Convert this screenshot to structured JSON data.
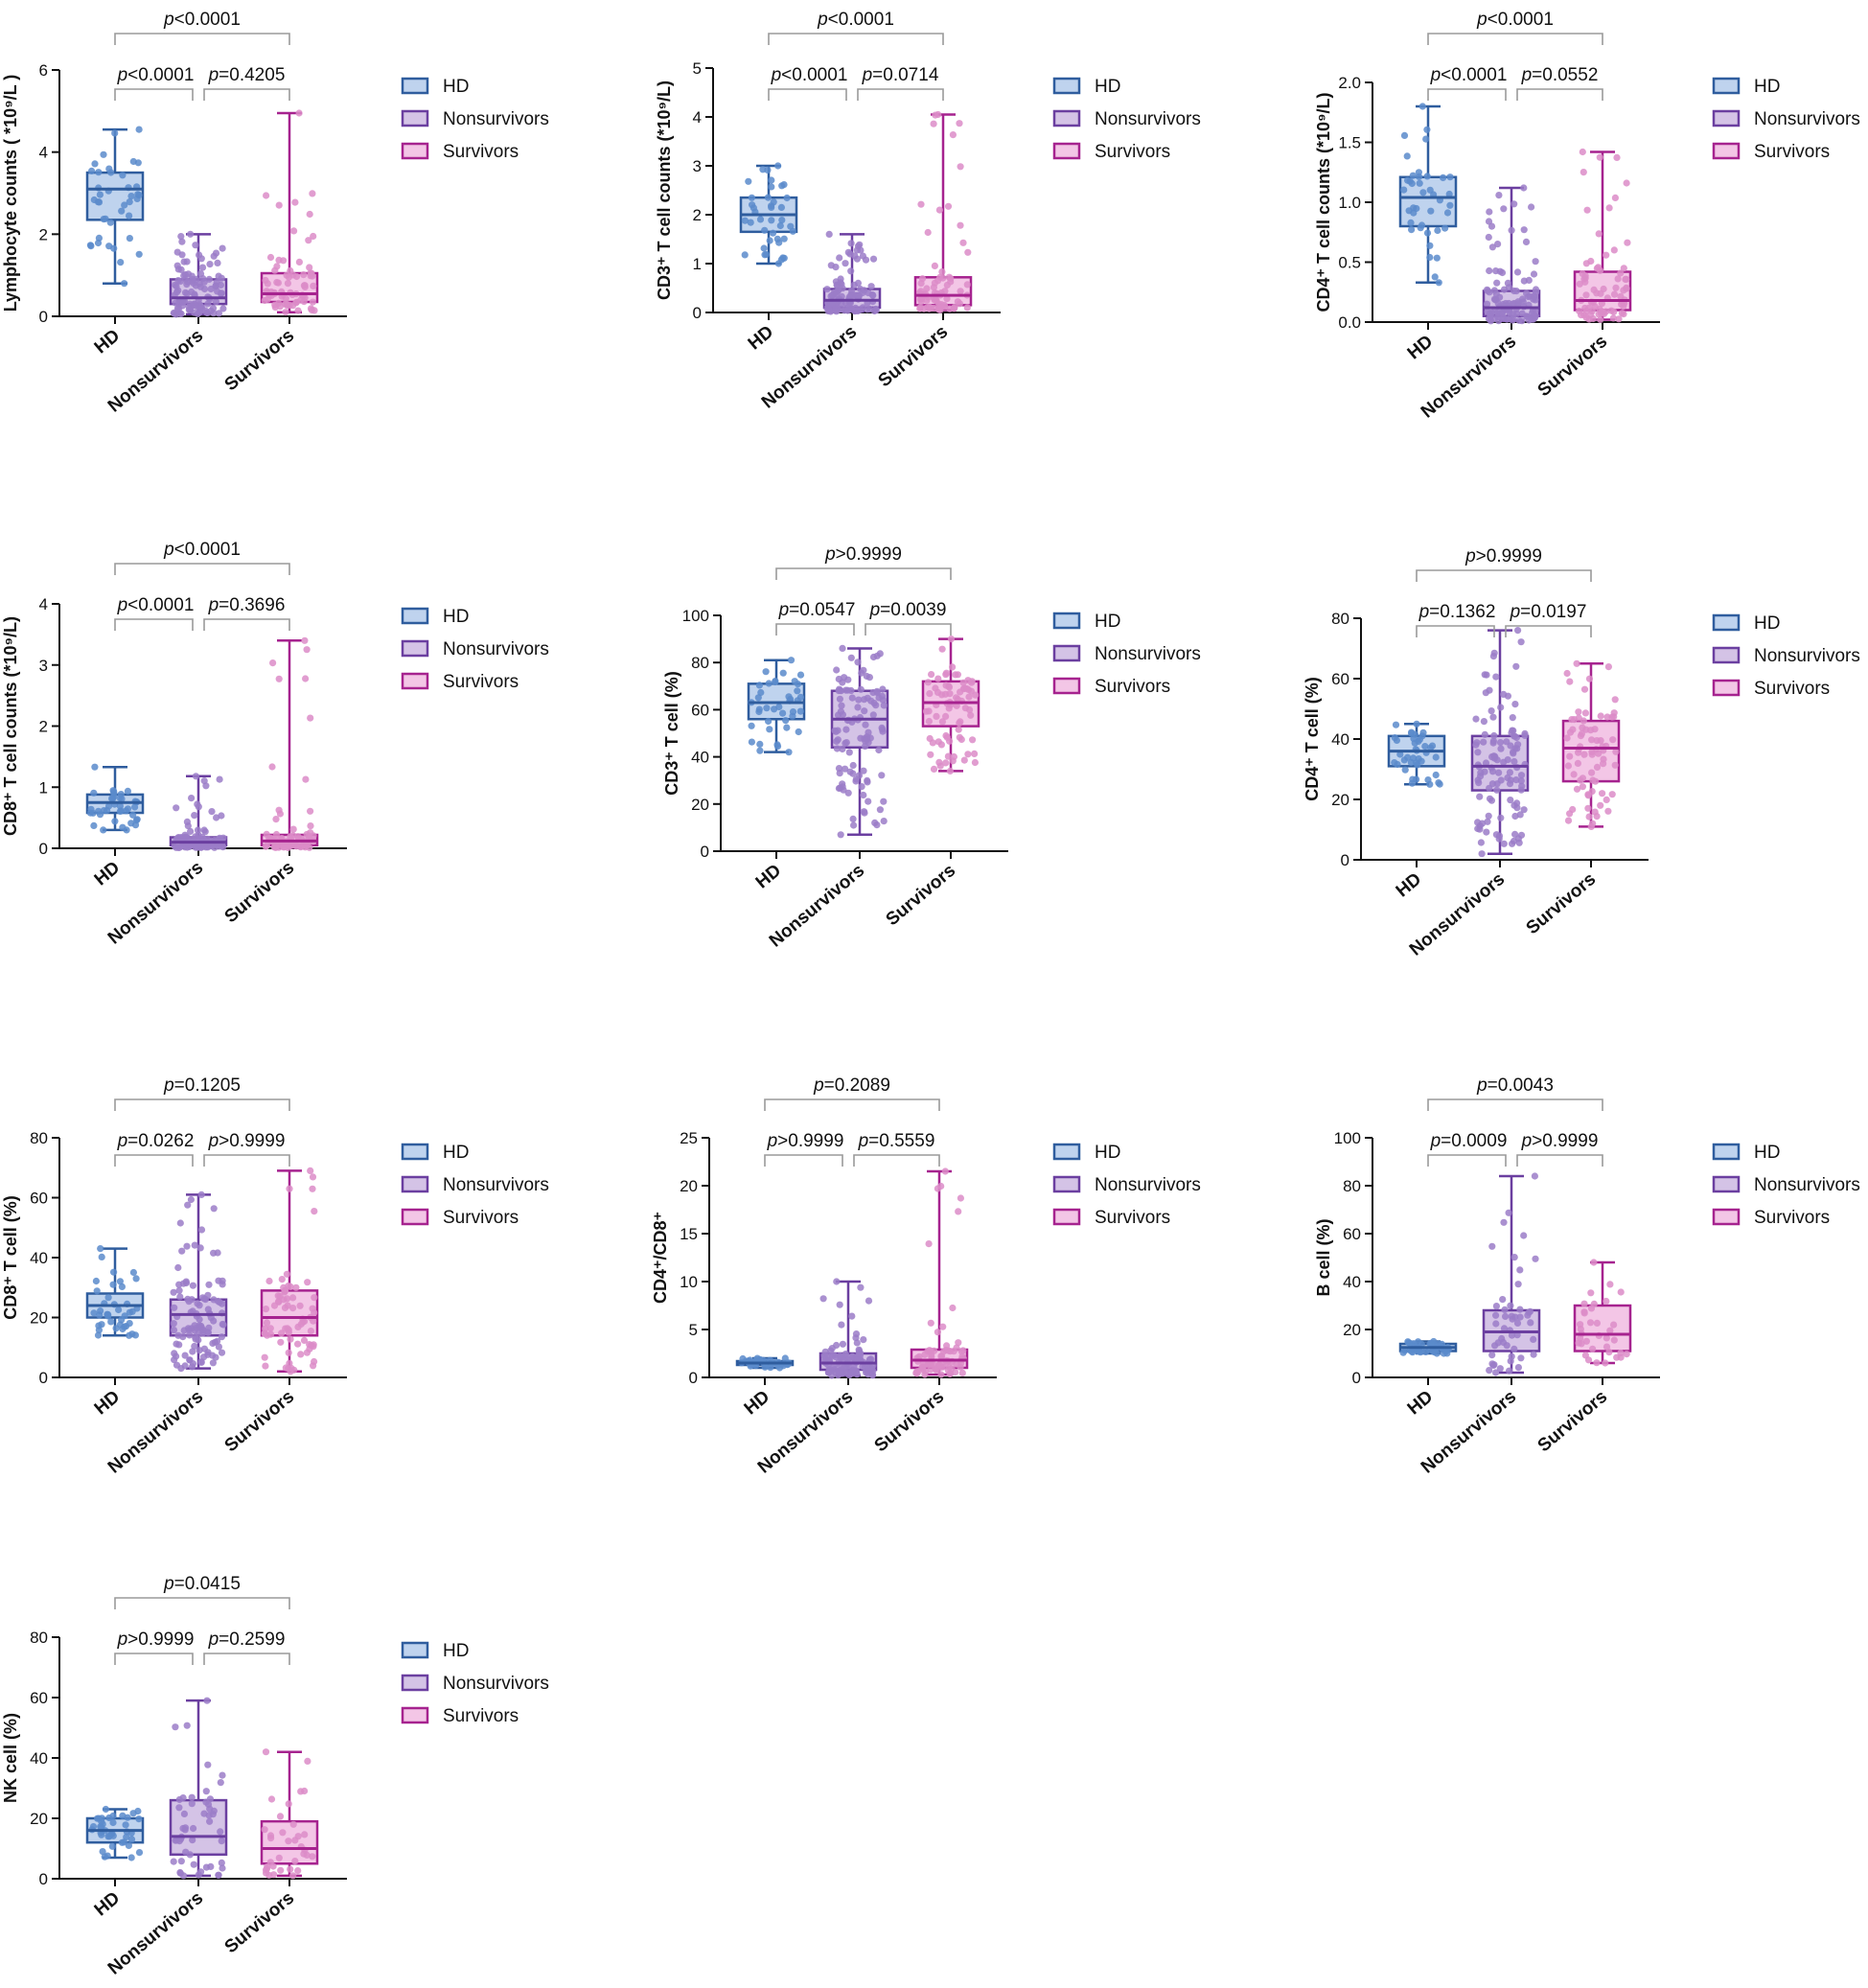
{
  "figure": {
    "legend_labels": [
      "HD",
      "Nonsurvivors",
      "Survivors"
    ],
    "group_colors": {
      "HD": {
        "stroke": "#2F5D9E",
        "fill": "#BFD3EE",
        "dot": "#5B8BCB"
      },
      "Nonsurvivors": {
        "stroke": "#6B3FA0",
        "fill": "#D4C3E6",
        "dot": "#9B7CC8"
      },
      "Survivors": {
        "stroke": "#A6238F",
        "fill": "#F3C6E6",
        "dot": "#DC8CC8"
      }
    }
  },
  "chart_data": [
    {
      "id": "lymphocyte",
      "type": "box",
      "ylabel": "Lymphocyte counts ( *10⁹/L )",
      "ylim": [
        0,
        6
      ],
      "yticks": [
        0,
        2,
        4,
        6
      ],
      "categories": [
        "HD",
        "Nonsurvivors",
        "Survivors"
      ],
      "boxes": [
        {
          "group": "HD",
          "min": 0.8,
          "q1": 2.35,
          "median": 3.1,
          "q3": 3.5,
          "max": 4.55,
          "n": 40
        },
        {
          "group": "Nonsurvivors",
          "min": 0.05,
          "q1": 0.3,
          "median": 0.45,
          "q3": 0.9,
          "max": 2.0,
          "n": 110
        },
        {
          "group": "Survivors",
          "min": 0.1,
          "q1": 0.35,
          "median": 0.55,
          "q3": 1.05,
          "max": 4.95,
          "n": 75
        }
      ],
      "comparisons": [
        {
          "pair": "HD vs Nonsurvivors",
          "label": "p<0.0001"
        },
        {
          "pair": "Nonsurvivors vs Survivors",
          "label": "p=0.4205"
        },
        {
          "pair": "HD vs Survivors",
          "label": "p<0.0001"
        }
      ]
    },
    {
      "id": "cd3_count",
      "type": "box",
      "ylabel": "CD3⁺ T cell counts (*10⁹/L)",
      "ylim": [
        0,
        5
      ],
      "yticks": [
        0,
        1,
        2,
        3,
        4,
        5
      ],
      "categories": [
        "HD",
        "Nonsurvivors",
        "Survivors"
      ],
      "boxes": [
        {
          "group": "HD",
          "min": 1.0,
          "q1": 1.65,
          "median": 2.0,
          "q3": 2.35,
          "max": 3.0,
          "n": 40
        },
        {
          "group": "Nonsurvivors",
          "min": 0.02,
          "q1": 0.1,
          "median": 0.25,
          "q3": 0.48,
          "max": 1.6,
          "n": 110
        },
        {
          "group": "Survivors",
          "min": 0.05,
          "q1": 0.15,
          "median": 0.35,
          "q3": 0.72,
          "max": 4.05,
          "n": 75
        }
      ],
      "comparisons": [
        {
          "pair": "HD vs Nonsurvivors",
          "label": "p<0.0001"
        },
        {
          "pair": "Nonsurvivors vs Survivors",
          "label": "p=0.0714"
        },
        {
          "pair": "HD vs Survivors",
          "label": "p<0.0001"
        }
      ]
    },
    {
      "id": "cd4_count",
      "type": "box",
      "ylabel": "CD4⁺ T cell counts (*10⁹/L)",
      "ylim": [
        0,
        2.0
      ],
      "yticks": [
        0.0,
        0.5,
        1.0,
        1.5,
        2.0
      ],
      "categories": [
        "HD",
        "Nonsurvivors",
        "Survivors"
      ],
      "boxes": [
        {
          "group": "HD",
          "min": 0.33,
          "q1": 0.8,
          "median": 1.04,
          "q3": 1.21,
          "max": 1.8,
          "n": 40
        },
        {
          "group": "Nonsurvivors",
          "min": 0.01,
          "q1": 0.05,
          "median": 0.12,
          "q3": 0.26,
          "max": 1.12,
          "n": 110
        },
        {
          "group": "Survivors",
          "min": 0.02,
          "q1": 0.1,
          "median": 0.18,
          "q3": 0.42,
          "max": 1.42,
          "n": 75
        }
      ],
      "comparisons": [
        {
          "pair": "HD vs Nonsurvivors",
          "label": "p<0.0001"
        },
        {
          "pair": "Nonsurvivors vs Survivors",
          "label": "p=0.0552"
        },
        {
          "pair": "HD vs Survivors",
          "label": "p<0.0001"
        }
      ]
    },
    {
      "id": "cd8_count",
      "type": "box",
      "ylabel": "CD8⁺ T cell counts (*10⁹/L)",
      "ylim": [
        0,
        4
      ],
      "yticks": [
        0,
        1,
        2,
        3,
        4
      ],
      "categories": [
        "HD",
        "Nonsurvivors",
        "Survivors"
      ],
      "boxes": [
        {
          "group": "HD",
          "min": 0.3,
          "q1": 0.58,
          "median": 0.75,
          "q3": 0.88,
          "max": 1.33,
          "n": 40
        },
        {
          "group": "Nonsurvivors",
          "min": 0.01,
          "q1": 0.05,
          "median": 0.1,
          "q3": 0.18,
          "max": 1.18,
          "n": 110
        },
        {
          "group": "Survivors",
          "min": 0.01,
          "q1": 0.05,
          "median": 0.12,
          "q3": 0.22,
          "max": 3.4,
          "n": 75
        }
      ],
      "comparisons": [
        {
          "pair": "HD vs Nonsurvivors",
          "label": "p<0.0001"
        },
        {
          "pair": "Nonsurvivors vs Survivors",
          "label": "p=0.3696"
        },
        {
          "pair": "HD vs Survivors",
          "label": "p<0.0001"
        }
      ]
    },
    {
      "id": "cd3_pct",
      "type": "box",
      "ylabel": "CD3⁺ T cell (%)",
      "ylim": [
        0,
        100
      ],
      "yticks": [
        0,
        20,
        40,
        60,
        80,
        100
      ],
      "categories": [
        "HD",
        "Nonsurvivors",
        "Survivors"
      ],
      "boxes": [
        {
          "group": "HD",
          "min": 42,
          "q1": 56,
          "median": 63,
          "q3": 71,
          "max": 81,
          "n": 40
        },
        {
          "group": "Nonsurvivors",
          "min": 7,
          "q1": 44,
          "median": 56,
          "q3": 68,
          "max": 86,
          "n": 110
        },
        {
          "group": "Survivors",
          "min": 34,
          "q1": 53,
          "median": 63,
          "q3": 72,
          "max": 90,
          "n": 75
        }
      ],
      "comparisons": [
        {
          "pair": "HD vs Nonsurvivors",
          "label": "p=0.0547"
        },
        {
          "pair": "Nonsurvivors vs Survivors",
          "label": "p=0.0039"
        },
        {
          "pair": "HD vs Survivors",
          "label": "p>0.9999"
        }
      ]
    },
    {
      "id": "cd4_pct",
      "type": "box",
      "ylabel": "CD4⁺ T cell (%)",
      "ylim": [
        0,
        80
      ],
      "yticks": [
        0,
        20,
        40,
        60,
        80
      ],
      "categories": [
        "HD",
        "Nonsurvivors",
        "Survivors"
      ],
      "boxes": [
        {
          "group": "HD",
          "min": 25,
          "q1": 31,
          "median": 36,
          "q3": 41,
          "max": 45,
          "n": 40
        },
        {
          "group": "Nonsurvivors",
          "min": 2,
          "q1": 23,
          "median": 31,
          "q3": 41,
          "max": 76,
          "n": 110
        },
        {
          "group": "Survivors",
          "min": 11,
          "q1": 26,
          "median": 37,
          "q3": 46,
          "max": 65,
          "n": 75
        }
      ],
      "comparisons": [
        {
          "pair": "HD vs Nonsurvivors",
          "label": "p=0.1362"
        },
        {
          "pair": "Nonsurvivors vs Survivors",
          "label": "p=0.0197"
        },
        {
          "pair": "HD vs Survivors",
          "label": "p>0.9999"
        }
      ]
    },
    {
      "id": "cd8_pct",
      "type": "box",
      "ylabel": "CD8⁺ T cell (%)",
      "ylim": [
        0,
        80
      ],
      "yticks": [
        0,
        20,
        40,
        60,
        80
      ],
      "categories": [
        "HD",
        "Nonsurvivors",
        "Survivors"
      ],
      "boxes": [
        {
          "group": "HD",
          "min": 14,
          "q1": 20,
          "median": 24,
          "q3": 28,
          "max": 43,
          "n": 40
        },
        {
          "group": "Nonsurvivors",
          "min": 3,
          "q1": 14,
          "median": 21,
          "q3": 26,
          "max": 61,
          "n": 110
        },
        {
          "group": "Survivors",
          "min": 2,
          "q1": 14,
          "median": 20,
          "q3": 29,
          "max": 69,
          "n": 75
        }
      ],
      "comparisons": [
        {
          "pair": "HD vs Nonsurvivors",
          "label": "p=0.0262"
        },
        {
          "pair": "Nonsurvivors vs Survivors",
          "label": "p>0.9999"
        },
        {
          "pair": "HD vs Survivors",
          "label": "p=0.1205"
        }
      ]
    },
    {
      "id": "cd4_cd8_ratio",
      "type": "box",
      "ylabel": "CD4⁺/CD8⁺",
      "ylim": [
        0,
        25
      ],
      "yticks": [
        0,
        5,
        10,
        15,
        20,
        25
      ],
      "categories": [
        "HD",
        "Nonsurvivors",
        "Survivors"
      ],
      "boxes": [
        {
          "group": "HD",
          "min": 1.0,
          "q1": 1.3,
          "median": 1.5,
          "q3": 1.7,
          "max": 2.0,
          "n": 40
        },
        {
          "group": "Nonsurvivors",
          "min": 0.2,
          "q1": 0.8,
          "median": 1.5,
          "q3": 2.5,
          "max": 10,
          "n": 110
        },
        {
          "group": "Survivors",
          "min": 0.3,
          "q1": 1.0,
          "median": 1.8,
          "q3": 2.9,
          "max": 21.5,
          "n": 75
        }
      ],
      "comparisons": [
        {
          "pair": "HD vs Nonsurvivors",
          "label": "p>0.9999"
        },
        {
          "pair": "Nonsurvivors vs Survivors",
          "label": "p=0.5559"
        },
        {
          "pair": "HD vs Survivors",
          "label": "p=0.2089"
        }
      ]
    },
    {
      "id": "b_cell",
      "type": "box",
      "ylabel": "B cell (%)",
      "ylim": [
        0,
        100
      ],
      "yticks": [
        0,
        20,
        40,
        60,
        80,
        100
      ],
      "categories": [
        "HD",
        "Nonsurvivors",
        "Survivors"
      ],
      "boxes": [
        {
          "group": "HD",
          "min": 10,
          "q1": 11,
          "median": 12.5,
          "q3": 14,
          "max": 15,
          "n": 40
        },
        {
          "group": "Nonsurvivors",
          "min": 2,
          "q1": 11,
          "median": 19,
          "q3": 28,
          "max": 84,
          "n": 50
        },
        {
          "group": "Survivors",
          "min": 6,
          "q1": 11,
          "median": 18,
          "q3": 30,
          "max": 48,
          "n": 35
        }
      ],
      "comparisons": [
        {
          "pair": "HD vs Nonsurvivors",
          "label": "p=0.0009"
        },
        {
          "pair": "Nonsurvivors vs Survivors",
          "label": "p>0.9999"
        },
        {
          "pair": "HD vs Survivors",
          "label": "p=0.0043"
        }
      ]
    },
    {
      "id": "nk_cell",
      "type": "box",
      "ylabel": "NK cell (%)",
      "ylim": [
        0,
        80
      ],
      "yticks": [
        0,
        20,
        40,
        60,
        80
      ],
      "categories": [
        "HD",
        "Nonsurvivors",
        "Survivors"
      ],
      "boxes": [
        {
          "group": "HD",
          "min": 7,
          "q1": 12,
          "median": 16,
          "q3": 20,
          "max": 23,
          "n": 40
        },
        {
          "group": "Nonsurvivors",
          "min": 1,
          "q1": 8,
          "median": 14,
          "q3": 26,
          "max": 59,
          "n": 50
        },
        {
          "group": "Survivors",
          "min": 1,
          "q1": 5,
          "median": 10,
          "q3": 19,
          "max": 42,
          "n": 35
        }
      ],
      "comparisons": [
        {
          "pair": "HD vs Nonsurvivors",
          "label": "p>0.9999"
        },
        {
          "pair": "Nonsurvivors vs Survivors",
          "label": "p=0.2599"
        },
        {
          "pair": "HD vs Survivors",
          "label": "p=0.0415"
        }
      ]
    }
  ]
}
